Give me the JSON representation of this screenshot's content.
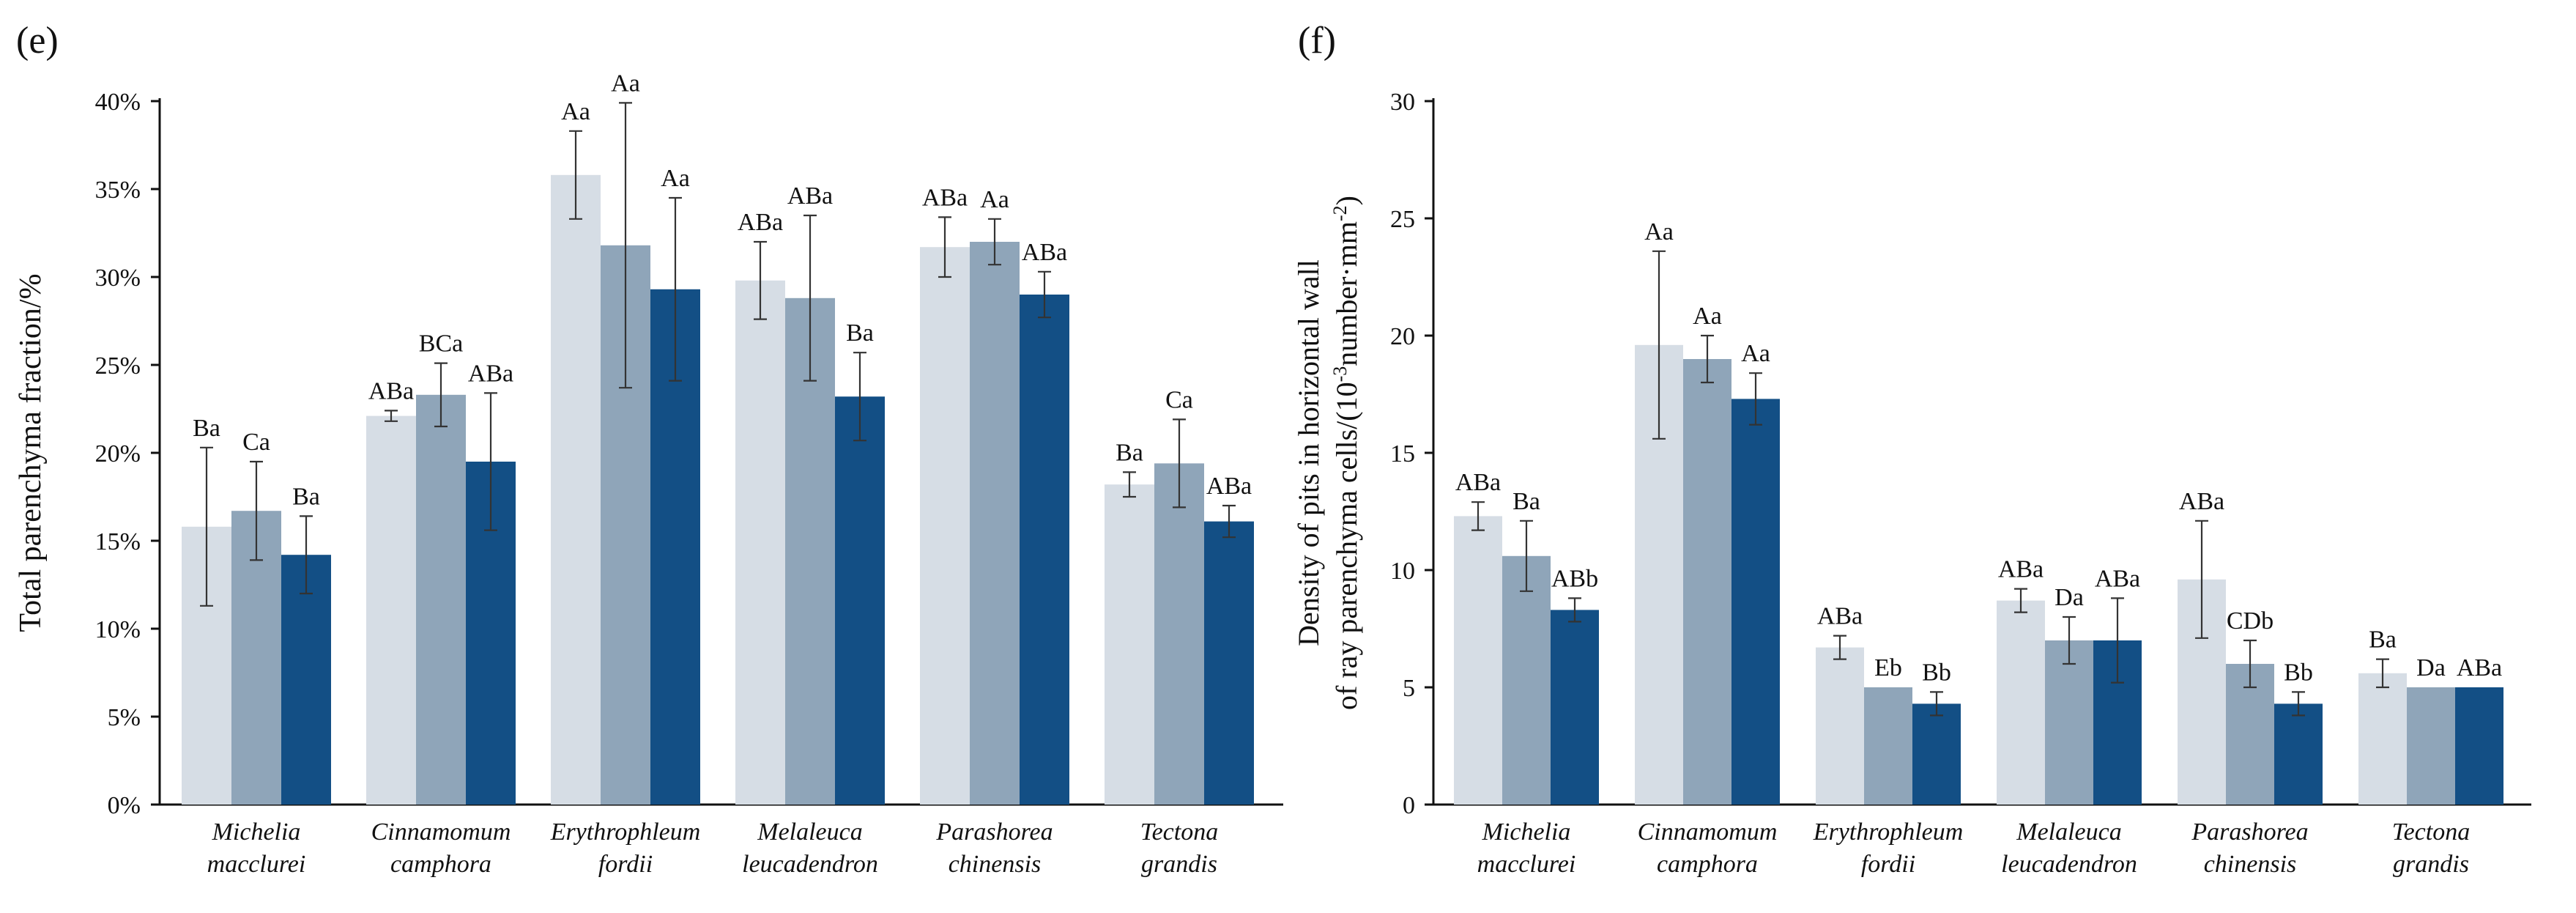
{
  "colors": {
    "series_light": "#d6dde5",
    "series_mid": "#8fa5b9",
    "series_dark": "#134f85",
    "axis": "#111111",
    "error_bar": "#333333"
  },
  "chart_data": [
    {
      "type": "bar",
      "panel_label": "(e)",
      "ylabel": "Total parenchyma fraction/%",
      "ylim": [
        0,
        40
      ],
      "yticks": [
        0,
        5,
        10,
        15,
        20,
        25,
        30,
        35,
        40
      ],
      "ytick_labels": [
        "0%",
        "5%",
        "10%",
        "15%",
        "20%",
        "25%",
        "30%",
        "35%",
        "40%"
      ],
      "categories": [
        [
          "Michelia",
          "macclurei"
        ],
        [
          "Cinnamomum",
          "camphora"
        ],
        [
          "Erythrophleum",
          "fordii"
        ],
        [
          "Melaleuca",
          "leucadendron"
        ],
        [
          "Parashorea",
          "chinensis"
        ],
        [
          "Tectona",
          "grandis"
        ]
      ],
      "series": [
        {
          "name": "series 1",
          "color": "#d6dde5",
          "values": [
            15.8,
            22.1,
            35.8,
            29.8,
            31.7,
            18.2
          ],
          "errors": [
            4.5,
            0.3,
            2.5,
            2.2,
            1.7,
            0.7
          ],
          "labels": [
            "Ba",
            "ABa",
            "Aa",
            "ABa",
            "ABa",
            "Ba"
          ]
        },
        {
          "name": "series 2",
          "color": "#8fa5b9",
          "values": [
            16.7,
            23.3,
            31.8,
            28.8,
            32.0,
            19.4
          ],
          "errors": [
            2.8,
            1.8,
            8.1,
            4.7,
            1.3,
            2.5
          ],
          "labels": [
            "Ca",
            "BCa",
            "Aa",
            "ABa",
            "Aa",
            "Ca"
          ]
        },
        {
          "name": "series 3",
          "color": "#134f85",
          "values": [
            14.2,
            19.5,
            29.3,
            23.2,
            29.0,
            16.1
          ],
          "errors": [
            2.2,
            3.9,
            5.2,
            2.5,
            1.3,
            0.9
          ],
          "labels": [
            "Ba",
            "ABa",
            "Aa",
            "Ba",
            "ABa",
            "ABa"
          ]
        }
      ]
    },
    {
      "type": "bar",
      "panel_label": "(f)",
      "ylabel_lines": [
        "Density of pits in horizontal wall",
        "of ray parenchyma cells/(10",
        "-3",
        "number·mm",
        "-2",
        ")"
      ],
      "ylim": [
        0,
        30
      ],
      "yticks": [
        0,
        5,
        10,
        15,
        20,
        25,
        30
      ],
      "ytick_labels": [
        "0",
        "5",
        "10",
        "15",
        "20",
        "25",
        "30"
      ],
      "categories": [
        [
          "Michelia",
          "macclurei"
        ],
        [
          "Cinnamomum",
          "camphora"
        ],
        [
          "Erythrophleum",
          "fordii"
        ],
        [
          "Melaleuca",
          "leucadendron"
        ],
        [
          "Parashorea",
          "chinensis"
        ],
        [
          "Tectona",
          "grandis"
        ]
      ],
      "series": [
        {
          "name": "series 1",
          "color": "#d6dde5",
          "values": [
            12.3,
            19.6,
            6.7,
            8.7,
            9.6,
            5.6
          ],
          "errors": [
            0.6,
            4.0,
            0.5,
            0.5,
            2.5,
            0.6
          ],
          "labels": [
            "ABa",
            "Aa",
            "ABa",
            "ABa",
            "ABa",
            "Ba"
          ]
        },
        {
          "name": "series 2",
          "color": "#8fa5b9",
          "values": [
            10.6,
            19.0,
            5.0,
            7.0,
            6.0,
            5.0
          ],
          "errors": [
            1.5,
            1.0,
            0.0,
            1.0,
            1.0,
            0.0
          ],
          "labels": [
            "Ba",
            "Aa",
            "Eb",
            "Da",
            "CDb",
            "Da"
          ]
        },
        {
          "name": "series 3",
          "color": "#134f85",
          "values": [
            8.3,
            17.3,
            4.3,
            7.0,
            4.3,
            5.0
          ],
          "errors": [
            0.5,
            1.1,
            0.5,
            1.8,
            0.5,
            0.0
          ],
          "labels": [
            "ABb",
            "Aa",
            "Bb",
            "ABa",
            "Bb",
            "ABa"
          ]
        }
      ]
    }
  ]
}
